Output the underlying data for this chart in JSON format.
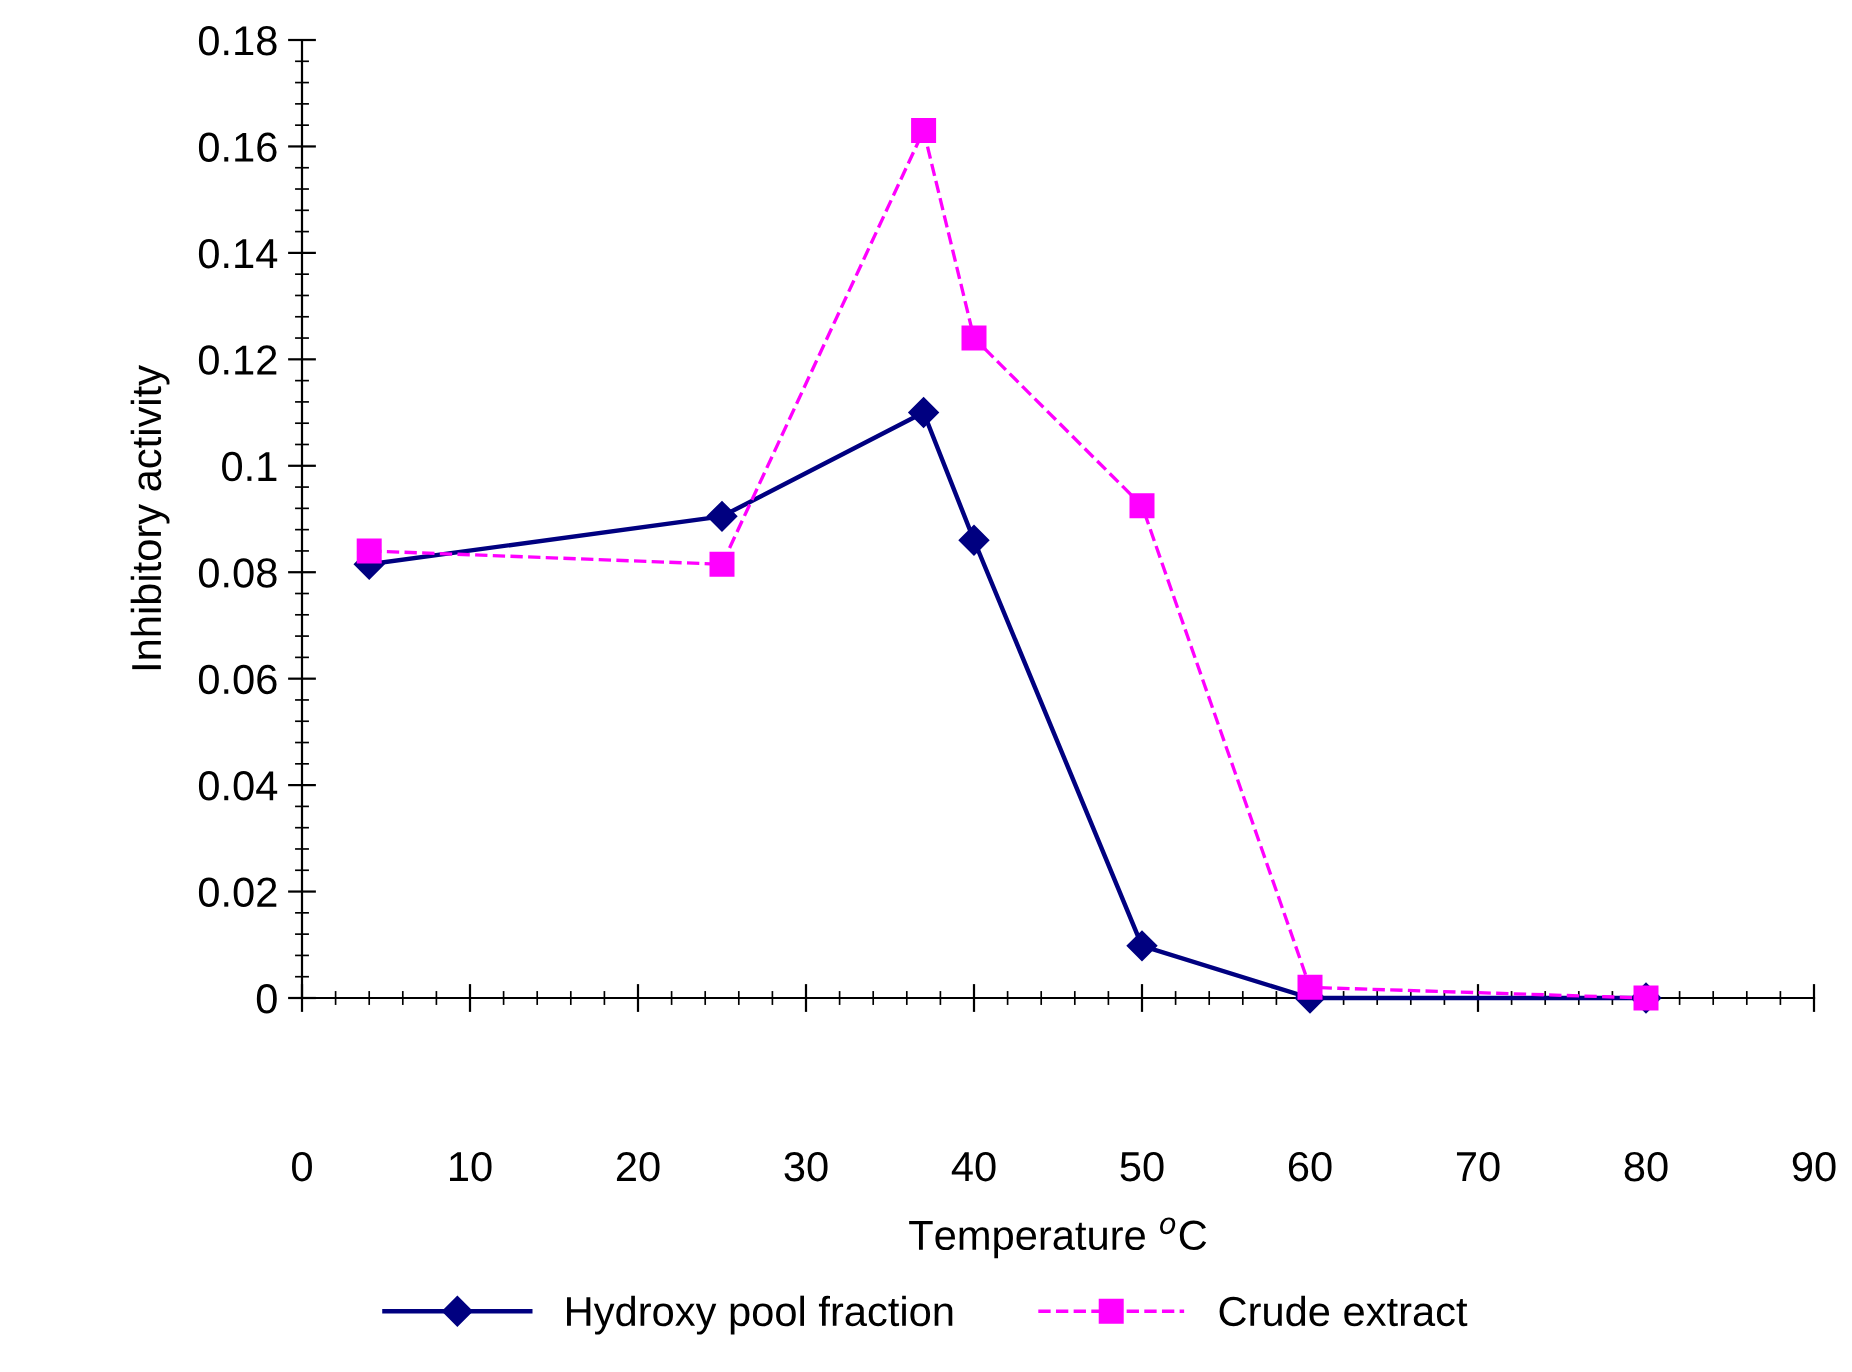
{
  "chart_data": {
    "type": "line",
    "xlabel": "Temperature $^{o}$C",
    "ylabel": "Inhibitory activity",
    "x": [
      4,
      25,
      37,
      40,
      50,
      60,
      80
    ],
    "series": [
      {
        "name": "Hydroxy pool fraction",
        "color": "#000080",
        "values": [
          0.0815,
          0.0905,
          0.11,
          0.086,
          0.0098,
          0,
          0
        ],
        "marker": "diamond",
        "line_style": "solid"
      },
      {
        "name": "Crude extract",
        "color": "#ff00ff",
        "values": [
          0.084,
          0.0815,
          0.163,
          0.124,
          0.0925,
          0.002,
          0
        ],
        "marker": "square",
        "line_style": "dashed"
      }
    ],
    "xlim": [
      0,
      90
    ],
    "xticks": [
      0,
      10,
      20,
      30,
      40,
      50,
      60,
      70,
      80,
      90
    ],
    "ylim": [
      0,
      0.18
    ],
    "yticks": [
      0,
      0.02,
      0.04,
      0.06,
      0.08,
      0.1,
      0.12,
      0.14,
      0.16,
      0.18
    ],
    "grid": false,
    "legend": "bottom"
  }
}
